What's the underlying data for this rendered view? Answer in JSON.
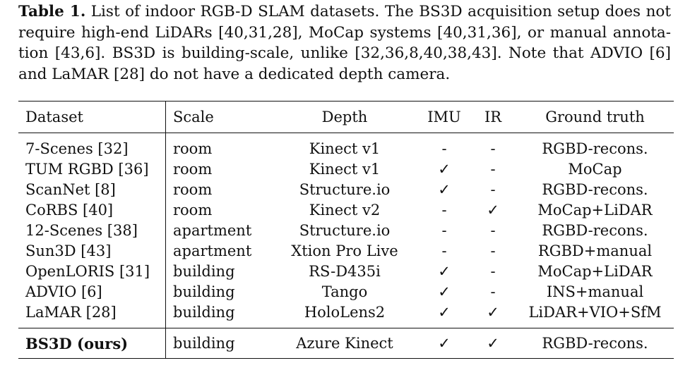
{
  "caption": {
    "label": "Table 1.",
    "lines": [
      "List of indoor RGB-D SLAM datasets. The BS3D acquisition setup does",
      "not require high-end LiDARs [40,31,28], MoCap systems [40,31,36], or manual annota-",
      "tion [43,6]. BS3D is building-scale, unlike [32,36,8,40,38,43]. Note that ADVIO [6] and",
      "LaMAR [28] do not have a dedicated depth camera."
    ]
  },
  "table": {
    "headers": {
      "dataset": "Dataset",
      "scale": "Scale",
      "depth": "Depth",
      "imu": "IMU",
      "ir": "IR",
      "ground_truth": "Ground truth"
    },
    "rows": [
      {
        "dataset": "7-Scenes [32]",
        "scale": "room",
        "depth": "Kinect v1",
        "imu": "-",
        "ir": "-",
        "ground_truth": "RGBD-recons."
      },
      {
        "dataset": "TUM RGBD [36]",
        "scale": "room",
        "depth": "Kinect v1",
        "imu": "✓",
        "ir": "-",
        "ground_truth": "MoCap"
      },
      {
        "dataset": "ScanNet [8]",
        "scale": "room",
        "depth": "Structure.io",
        "imu": "✓",
        "ir": "-",
        "ground_truth": "RGBD-recons."
      },
      {
        "dataset": "CoRBS [40]",
        "scale": "room",
        "depth": "Kinect v2",
        "imu": "-",
        "ir": "✓",
        "ground_truth": "MoCap+LiDAR"
      },
      {
        "dataset": "12-Scenes [38]",
        "scale": "apartment",
        "depth": "Structure.io",
        "imu": "-",
        "ir": "-",
        "ground_truth": "RGBD-recons."
      },
      {
        "dataset": "Sun3D [43]",
        "scale": "apartment",
        "depth": "Xtion Pro Live",
        "imu": "-",
        "ir": "-",
        "ground_truth": "RGBD+manual"
      },
      {
        "dataset": "OpenLORIS [31]",
        "scale": "building",
        "depth": "RS-D435i",
        "imu": "✓",
        "ir": "-",
        "ground_truth": "MoCap+LiDAR"
      },
      {
        "dataset": "ADVIO [6]",
        "scale": "building",
        "depth": "Tango",
        "imu": "✓",
        "ir": "-",
        "ground_truth": "INS+manual"
      },
      {
        "dataset": "LaMAR [28]",
        "scale": "building",
        "depth": "HoloLens2",
        "imu": "✓",
        "ir": "✓",
        "ground_truth": "LiDAR+VIO+SfM"
      }
    ],
    "ours": {
      "dataset": "BS3D (ours)",
      "scale": "building",
      "depth": "Azure Kinect",
      "imu": "✓",
      "ir": "✓",
      "ground_truth": "RGBD-recons."
    }
  }
}
